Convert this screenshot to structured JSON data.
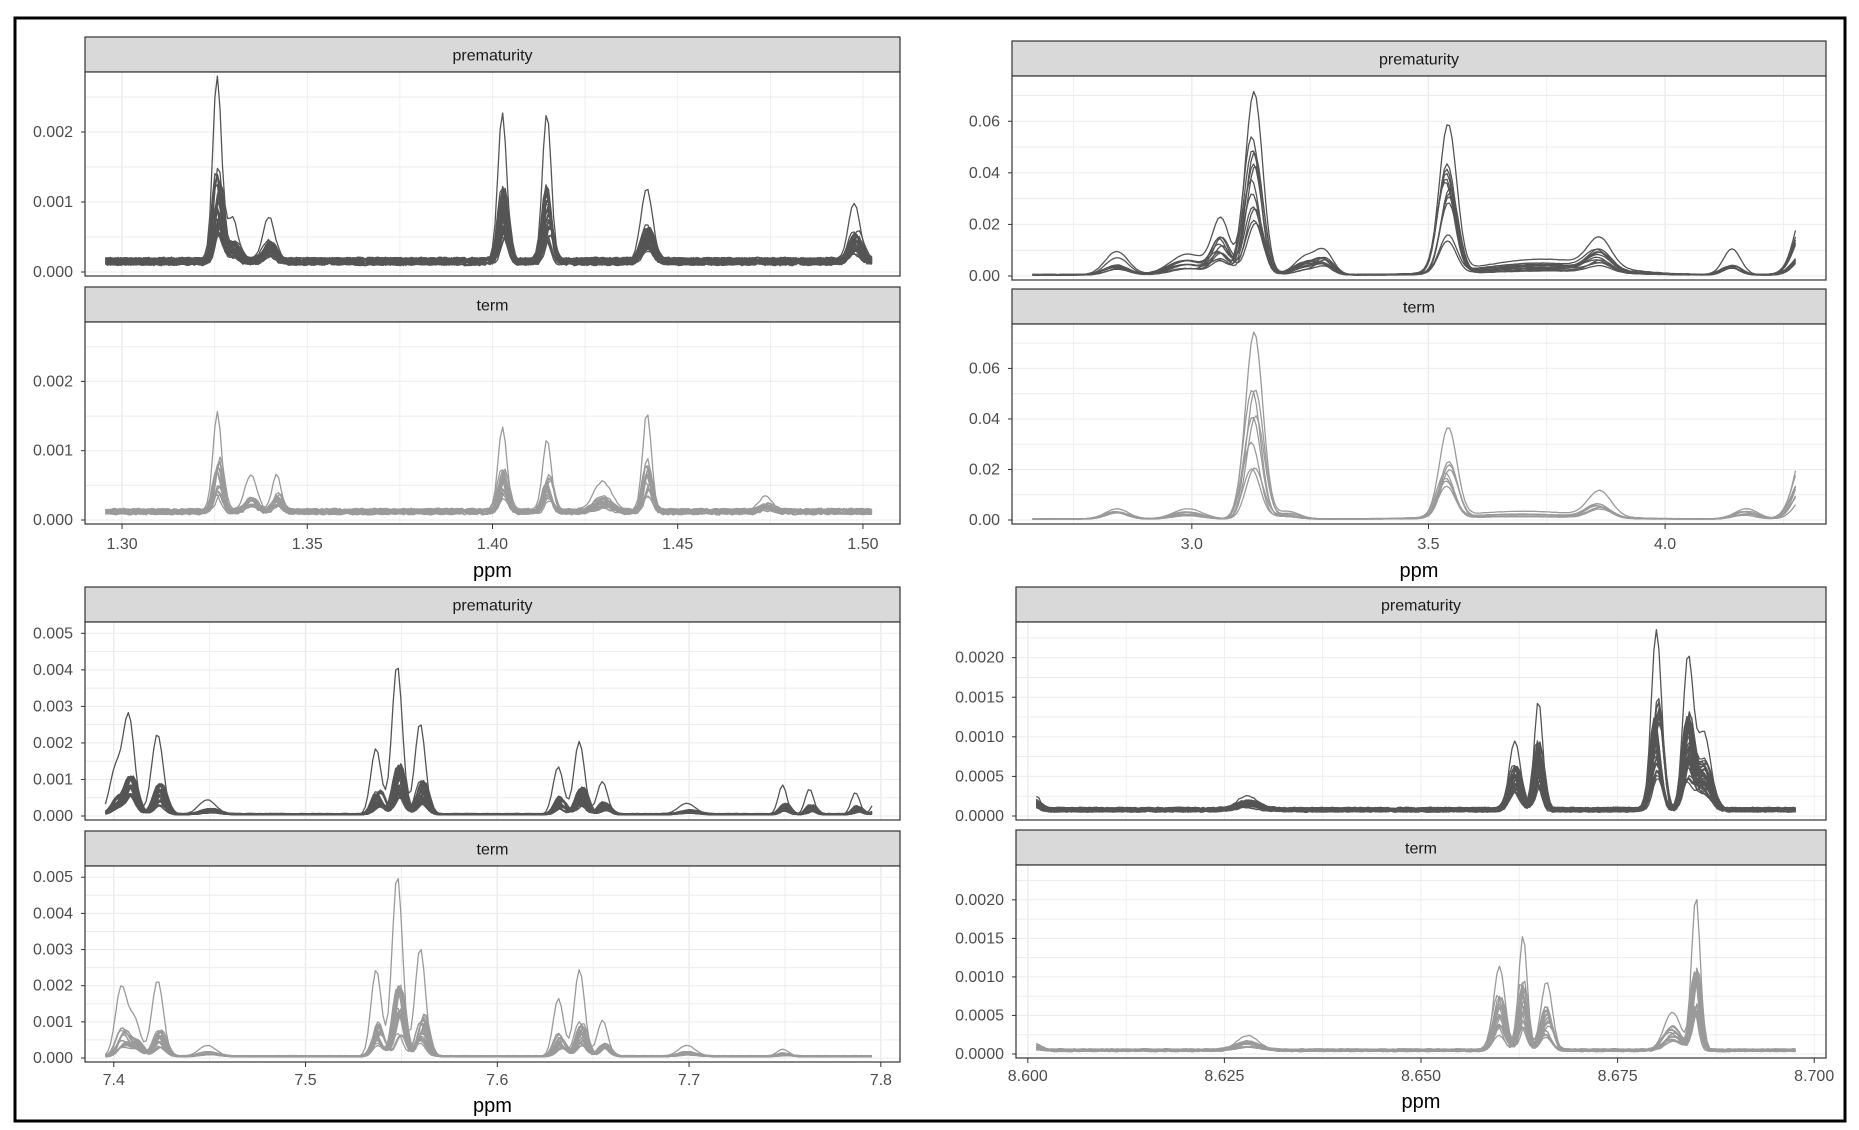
{
  "figure": {
    "strip_labels": {
      "top": "prematurity",
      "bottom": "term"
    },
    "colors": {
      "prematurity_line": "#555555",
      "term_line": "#9a9a9a",
      "strip_fill": "#d9d9d9",
      "grid": "#ebebeb",
      "panel_border": "#333333",
      "frame_border": "#000000"
    }
  },
  "chart_data": [
    {
      "type": "line",
      "position": "top-left",
      "xlabel": "ppm",
      "xlim": [
        1.29,
        1.51
      ],
      "x_ticks": [
        1.3,
        1.35,
        1.4,
        1.45,
        1.5
      ],
      "x_tick_labels": [
        "1.30",
        "1.35",
        "1.40",
        "1.45",
        "1.50"
      ],
      "ylim": [
        0.0,
        0.0028
      ],
      "y_ticks": [
        0.0,
        0.001,
        0.002
      ],
      "y_tick_labels": [
        "0.000",
        "0.001",
        "0.002"
      ],
      "facets": [
        "prematurity",
        "term"
      ],
      "series_count": {
        "prematurity": 40,
        "term": 20
      },
      "baseline": {
        "prematurity": 0.00015,
        "term": 0.00012
      },
      "peaks": {
        "prematurity": [
          {
            "x": 1.326,
            "y": 0.0026,
            "w": 0.0015
          },
          {
            "x": 1.33,
            "y": 0.0006,
            "w": 0.002
          },
          {
            "x": 1.34,
            "y": 0.0006,
            "w": 0.002
          },
          {
            "x": 1.403,
            "y": 0.0021,
            "w": 0.0015
          },
          {
            "x": 1.415,
            "y": 0.0021,
            "w": 0.0015
          },
          {
            "x": 1.442,
            "y": 0.001,
            "w": 0.002
          },
          {
            "x": 1.498,
            "y": 0.0008,
            "w": 0.002
          }
        ],
        "term": [
          {
            "x": 1.326,
            "y": 0.0014,
            "w": 0.0015
          },
          {
            "x": 1.335,
            "y": 0.0005,
            "w": 0.002
          },
          {
            "x": 1.342,
            "y": 0.0005,
            "w": 0.0015
          },
          {
            "x": 1.403,
            "y": 0.0012,
            "w": 0.0015
          },
          {
            "x": 1.415,
            "y": 0.001,
            "w": 0.0015
          },
          {
            "x": 1.43,
            "y": 0.0004,
            "w": 0.003
          },
          {
            "x": 1.442,
            "y": 0.0014,
            "w": 0.0015
          },
          {
            "x": 1.474,
            "y": 0.0002,
            "w": 0.002
          }
        ]
      }
    },
    {
      "type": "line",
      "position": "top-right",
      "xlabel": "ppm",
      "xlim": [
        2.62,
        4.34
      ],
      "x_ticks": [
        3.0,
        3.5,
        4.0
      ],
      "x_tick_labels": [
        "3.0",
        "3.5",
        "4.0"
      ],
      "ylim": [
        0.0,
        0.076
      ],
      "y_ticks": [
        0.0,
        0.02,
        0.04,
        0.06
      ],
      "y_tick_labels": [
        "0.00",
        "0.02",
        "0.04",
        "0.06"
      ],
      "facets": [
        "prematurity",
        "term"
      ],
      "series_count": {
        "prematurity": 12,
        "term": 8
      },
      "baseline": {
        "prematurity": 0.0005,
        "term": 0.0004
      },
      "peaks": {
        "prematurity": [
          {
            "x": 2.84,
            "y": 0.009,
            "w": 0.004
          },
          {
            "x": 2.99,
            "y": 0.008,
            "w": 0.006
          },
          {
            "x": 3.06,
            "y": 0.021,
            "w": 0.003
          },
          {
            "x": 3.13,
            "y": 0.071,
            "w": 0.003
          },
          {
            "x": 3.24,
            "y": 0.007,
            "w": 0.004
          },
          {
            "x": 3.28,
            "y": 0.008,
            "w": 0.003
          },
          {
            "x": 3.54,
            "y": 0.057,
            "w": 0.003
          },
          {
            "x": 3.74,
            "y": 0.006,
            "w": 0.02
          },
          {
            "x": 3.86,
            "y": 0.011,
            "w": 0.004
          },
          {
            "x": 4.14,
            "y": 0.01,
            "w": 0.003
          },
          {
            "x": 4.3,
            "y": 0.03,
            "w": 0.004
          }
        ],
        "term": [
          {
            "x": 2.84,
            "y": 0.004,
            "w": 0.004
          },
          {
            "x": 2.99,
            "y": 0.004,
            "w": 0.005
          },
          {
            "x": 3.13,
            "y": 0.074,
            "w": 0.003
          },
          {
            "x": 3.2,
            "y": 0.003,
            "w": 0.004
          },
          {
            "x": 3.54,
            "y": 0.035,
            "w": 0.003
          },
          {
            "x": 3.7,
            "y": 0.003,
            "w": 0.02
          },
          {
            "x": 3.86,
            "y": 0.01,
            "w": 0.004
          },
          {
            "x": 4.17,
            "y": 0.004,
            "w": 0.004
          },
          {
            "x": 4.3,
            "y": 0.034,
            "w": 0.004
          }
        ]
      }
    },
    {
      "type": "line",
      "position": "bottom-left",
      "xlabel": "ppm",
      "xlim": [
        7.385,
        7.81
      ],
      "x_ticks": [
        7.4,
        7.5,
        7.6,
        7.7,
        7.8
      ],
      "x_tick_labels": [
        "7.4",
        "7.5",
        "7.6",
        "7.7",
        "7.8"
      ],
      "ylim": [
        0.0,
        0.0052
      ],
      "y_ticks": [
        0.0,
        0.001,
        0.002,
        0.003,
        0.004,
        0.005
      ],
      "y_tick_labels": [
        "0.000",
        "0.001",
        "0.002",
        "0.003",
        "0.004",
        "0.005"
      ],
      "facets": [
        "prematurity",
        "term"
      ],
      "series_count": {
        "prematurity": 40,
        "term": 20
      },
      "baseline": {
        "prematurity": 5e-05,
        "term": 5e-05
      },
      "peaks": {
        "prematurity": [
          {
            "x": 7.402,
            "y": 0.0012,
            "w": 0.002
          },
          {
            "x": 7.409,
            "y": 0.0027,
            "w": 0.002
          },
          {
            "x": 7.424,
            "y": 0.0022,
            "w": 0.002
          },
          {
            "x": 7.45,
            "y": 0.0004,
            "w": 0.003
          },
          {
            "x": 7.538,
            "y": 0.0018,
            "w": 0.0018
          },
          {
            "x": 7.549,
            "y": 0.0041,
            "w": 0.0018
          },
          {
            "x": 7.561,
            "y": 0.0025,
            "w": 0.0018
          },
          {
            "x": 7.633,
            "y": 0.0013,
            "w": 0.0018
          },
          {
            "x": 7.644,
            "y": 0.002,
            "w": 0.0018
          },
          {
            "x": 7.656,
            "y": 0.0009,
            "w": 0.0018
          },
          {
            "x": 7.7,
            "y": 0.0003,
            "w": 0.003
          },
          {
            "x": 7.75,
            "y": 0.0008,
            "w": 0.0015
          },
          {
            "x": 7.764,
            "y": 0.0007,
            "w": 0.0015
          },
          {
            "x": 7.788,
            "y": 0.0006,
            "w": 0.0015
          },
          {
            "x": 7.799,
            "y": 0.0004,
            "w": 0.0015
          }
        ],
        "term": [
          {
            "x": 7.405,
            "y": 0.0019,
            "w": 0.002
          },
          {
            "x": 7.412,
            "y": 0.001,
            "w": 0.002
          },
          {
            "x": 7.424,
            "y": 0.0021,
            "w": 0.002
          },
          {
            "x": 7.45,
            "y": 0.0003,
            "w": 0.003
          },
          {
            "x": 7.538,
            "y": 0.0024,
            "w": 0.0018
          },
          {
            "x": 7.549,
            "y": 0.005,
            "w": 0.0018
          },
          {
            "x": 7.561,
            "y": 0.003,
            "w": 0.0018
          },
          {
            "x": 7.633,
            "y": 0.0016,
            "w": 0.0018
          },
          {
            "x": 7.644,
            "y": 0.0024,
            "w": 0.0018
          },
          {
            "x": 7.656,
            "y": 0.001,
            "w": 0.0018
          },
          {
            "x": 7.7,
            "y": 0.0003,
            "w": 0.003
          },
          {
            "x": 7.75,
            "y": 0.0002,
            "w": 0.002
          }
        ]
      }
    },
    {
      "type": "line",
      "position": "bottom-right",
      "xlabel": "ppm",
      "xlim": [
        8.5985,
        8.7015
      ],
      "x_ticks": [
        8.6,
        8.625,
        8.65,
        8.675,
        8.7
      ],
      "x_tick_labels": [
        "8.600",
        "8.625",
        "8.650",
        "8.675",
        "8.700"
      ],
      "ylim": [
        0.0,
        0.0024
      ],
      "y_ticks": [
        0.0,
        0.0005,
        0.001,
        0.0015,
        0.002
      ],
      "y_tick_labels": [
        "0.0000",
        "0.0005",
        "0.0010",
        "0.0015",
        "0.0020"
      ],
      "facets": [
        "prematurity",
        "term"
      ],
      "series_count": {
        "prematurity": 40,
        "term": 20
      },
      "baseline": {
        "prematurity": 8e-05,
        "term": 5e-05
      },
      "peaks": {
        "prematurity": [
          {
            "x": 8.601,
            "y": 0.0002,
            "w": 0.002
          },
          {
            "x": 8.628,
            "y": 0.0002,
            "w": 0.004
          },
          {
            "x": 8.662,
            "y": 0.0009,
            "w": 0.002
          },
          {
            "x": 8.665,
            "y": 0.0014,
            "w": 0.0015
          },
          {
            "x": 8.68,
            "y": 0.0023,
            "w": 0.0018
          },
          {
            "x": 8.684,
            "y": 0.0019,
            "w": 0.0018
          },
          {
            "x": 8.686,
            "y": 0.001,
            "w": 0.0025
          }
        ],
        "term": [
          {
            "x": 8.601,
            "y": 0.0001,
            "w": 0.002
          },
          {
            "x": 8.628,
            "y": 0.0002,
            "w": 0.004
          },
          {
            "x": 8.66,
            "y": 0.0011,
            "w": 0.002
          },
          {
            "x": 8.663,
            "y": 0.0015,
            "w": 0.0015
          },
          {
            "x": 8.666,
            "y": 0.0009,
            "w": 0.002
          },
          {
            "x": 8.685,
            "y": 0.002,
            "w": 0.0015
          },
          {
            "x": 8.682,
            "y": 0.0005,
            "w": 0.003
          }
        ]
      }
    }
  ]
}
